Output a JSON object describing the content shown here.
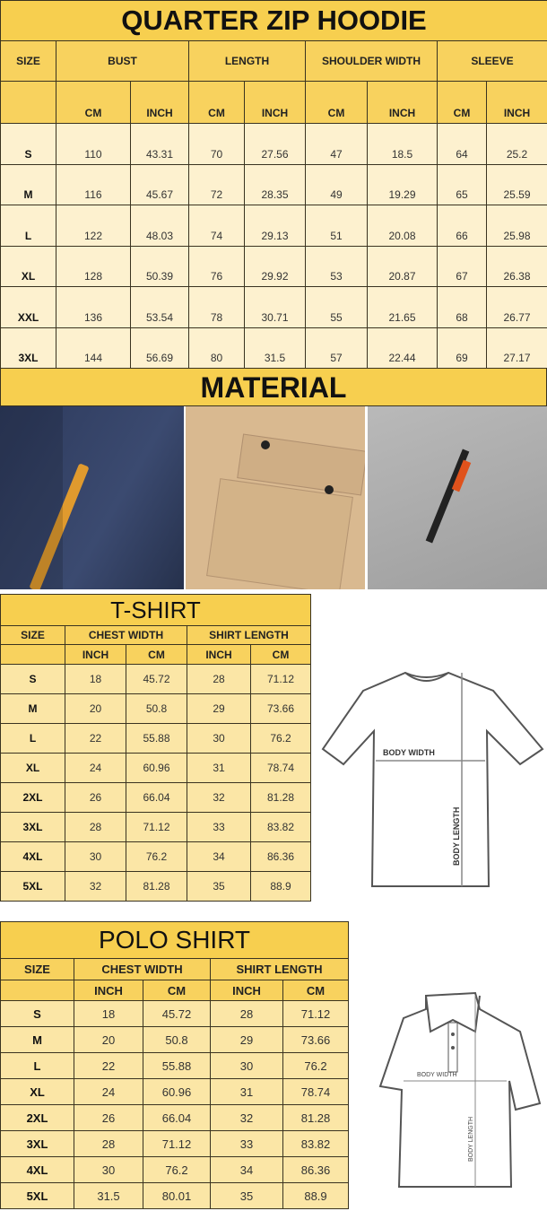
{
  "hoodie": {
    "title": "QUARTER ZIP HOODIE",
    "size_label": "SIZE",
    "groups": [
      "BUST",
      "LENGTH",
      "SHOULDER WIDTH",
      "SLEEVE"
    ],
    "units": [
      "CM",
      "INCH",
      "CM",
      "INCH",
      "CM",
      "INCH",
      "CM",
      "INCH"
    ],
    "rows": [
      [
        "S",
        "110",
        "43.31",
        "70",
        "27.56",
        "47",
        "18.5",
        "64",
        "25.2"
      ],
      [
        "M",
        "116",
        "45.67",
        "72",
        "28.35",
        "49",
        "19.29",
        "65",
        "25.59"
      ],
      [
        "L",
        "122",
        "48.03",
        "74",
        "29.13",
        "51",
        "20.08",
        "66",
        "25.98"
      ],
      [
        "XL",
        "128",
        "50.39",
        "76",
        "29.92",
        "53",
        "20.87",
        "67",
        "26.38"
      ],
      [
        "XXL",
        "136",
        "53.54",
        "78",
        "30.71",
        "55",
        "21.65",
        "68",
        "26.77"
      ],
      [
        "3XL",
        "144",
        "56.69",
        "80",
        "31.5",
        "57",
        "22.44",
        "69",
        "27.17"
      ]
    ]
  },
  "material": {
    "title": "MATERIAL",
    "photos": [
      "navy-fleece-zip-pocket",
      "khaki-flap-pocket",
      "grey-sleeve-zip-pocket"
    ]
  },
  "tshirt": {
    "title": "T-SHIRT",
    "size_label": "SIZE",
    "groups": [
      "CHEST WIDTH",
      "SHIRT LENGTH"
    ],
    "units": [
      "INCH",
      "CM",
      "INCH",
      "CM"
    ],
    "rows": [
      [
        "S",
        "18",
        "45.72",
        "28",
        "71.12"
      ],
      [
        "M",
        "20",
        "50.8",
        "29",
        "73.66"
      ],
      [
        "L",
        "22",
        "55.88",
        "30",
        "76.2"
      ],
      [
        "XL",
        "24",
        "60.96",
        "31",
        "78.74"
      ],
      [
        "2XL",
        "26",
        "66.04",
        "32",
        "81.28"
      ],
      [
        "3XL",
        "28",
        "71.12",
        "33",
        "83.82"
      ],
      [
        "4XL",
        "30",
        "76.2",
        "34",
        "86.36"
      ],
      [
        "5XL",
        "32",
        "81.28",
        "35",
        "88.9"
      ]
    ],
    "diagram": {
      "width_label": "BODY WIDTH",
      "length_label": "BODY LENGTH"
    }
  },
  "polo": {
    "title": "POLO SHIRT",
    "size_label": "SIZE",
    "groups": [
      "CHEST WIDTH",
      "SHIRT LENGTH"
    ],
    "units": [
      "INCH",
      "CM",
      "INCH",
      "CM"
    ],
    "rows": [
      [
        "S",
        "18",
        "45.72",
        "28",
        "71.12"
      ],
      [
        "M",
        "20",
        "50.8",
        "29",
        "73.66"
      ],
      [
        "L",
        "22",
        "55.88",
        "30",
        "76.2"
      ],
      [
        "XL",
        "24",
        "60.96",
        "31",
        "78.74"
      ],
      [
        "2XL",
        "26",
        "66.04",
        "32",
        "81.28"
      ],
      [
        "3XL",
        "28",
        "71.12",
        "33",
        "83.82"
      ],
      [
        "4XL",
        "30",
        "76.2",
        "34",
        "86.36"
      ],
      [
        "5XL",
        "31.5",
        "80.01",
        "35",
        "88.9"
      ]
    ],
    "diagram": {
      "width_label": "BODY WIDTH",
      "length_label": "BODY LENGTH"
    }
  },
  "colors": {
    "title_yellow": "#f7cf4f",
    "header_yellow": "#f8d25e",
    "cell_cream": "#fdf1cf",
    "cell_yellow": "#fbe6a6"
  }
}
